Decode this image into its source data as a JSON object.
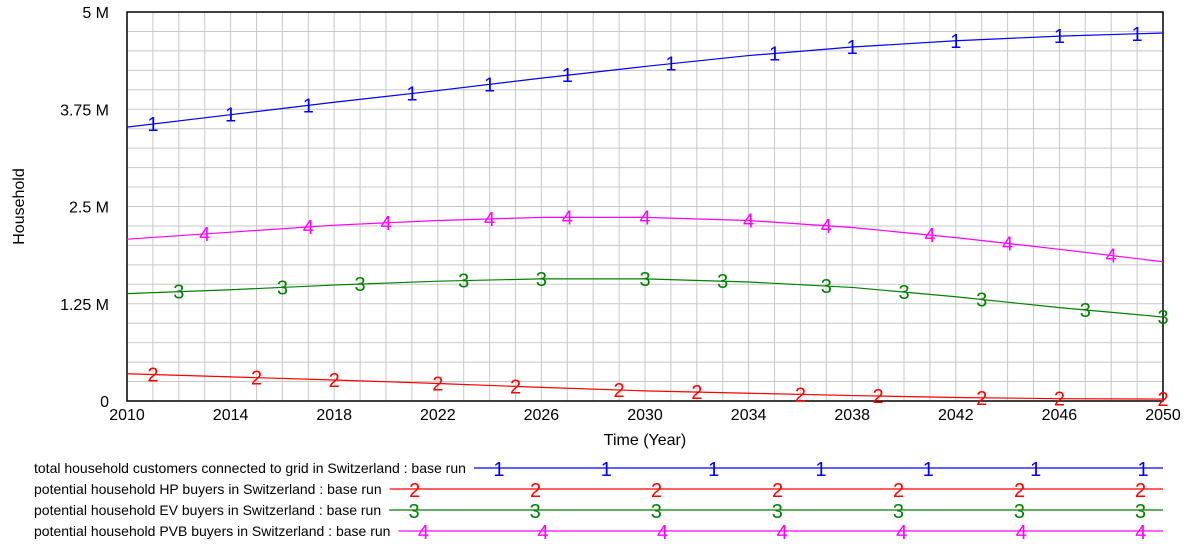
{
  "chart_data": {
    "type": "line",
    "xlabel": "Time (Year)",
    "ylabel": "Household",
    "xlim": [
      2010,
      2050
    ],
    "ylim": [
      0,
      5000000
    ],
    "grid": true,
    "legend_position": "bottom",
    "x_ticks": [
      "2010",
      "2014",
      "2018",
      "2022",
      "2026",
      "2030",
      "2034",
      "2038",
      "2042",
      "2046",
      "2050"
    ],
    "y_ticks": [
      "0",
      "1.25 M",
      "2.5 M",
      "3.75 M",
      "5 M"
    ],
    "y_tick_values": [
      0,
      1250000,
      2500000,
      3750000,
      5000000
    ],
    "x": [
      2010,
      2014,
      2018,
      2022,
      2026,
      2030,
      2034,
      2038,
      2042,
      2046,
      2050
    ],
    "series": [
      {
        "marker": "1",
        "name": "total household customers connected to grid in Switzerland : base run",
        "color": "#0000ff",
        "values": [
          3520000,
          3680000,
          3840000,
          3990000,
          4150000,
          4300000,
          4440000,
          4550000,
          4630000,
          4690000,
          4730000
        ],
        "marker_x": [
          2011,
          2014,
          2017,
          2021,
          2024,
          2027,
          2031,
          2035,
          2038,
          2042,
          2046,
          2049
        ]
      },
      {
        "marker": "2",
        "name": "potential household HP buyers in Switzerland : base run",
        "color": "#ff0000",
        "values": [
          350000,
          310000,
          270000,
          225000,
          175000,
          130000,
          100000,
          70000,
          45000,
          30000,
          25000
        ],
        "marker_x": [
          2011,
          2015,
          2018,
          2022,
          2025,
          2029,
          2032,
          2036,
          2039,
          2043,
          2046,
          2050
        ]
      },
      {
        "marker": "3",
        "name": "potential household EV buyers in Switzerland : base run",
        "color": "#008000",
        "values": [
          1380000,
          1430000,
          1490000,
          1540000,
          1570000,
          1570000,
          1530000,
          1460000,
          1340000,
          1200000,
          1080000
        ],
        "marker_x": [
          2012,
          2016,
          2019,
          2023,
          2026,
          2030,
          2033,
          2037,
          2040,
          2043,
          2047,
          2050
        ]
      },
      {
        "marker": "4",
        "name": "potential household PVB buyers in Switzerland : base run",
        "color": "#ff00ff",
        "values": [
          2080000,
          2170000,
          2260000,
          2320000,
          2360000,
          2360000,
          2320000,
          2230000,
          2100000,
          1950000,
          1790000
        ],
        "marker_x": [
          2013,
          2017,
          2020,
          2024,
          2027,
          2030,
          2034,
          2037,
          2041,
          2044,
          2048
        ]
      }
    ]
  }
}
